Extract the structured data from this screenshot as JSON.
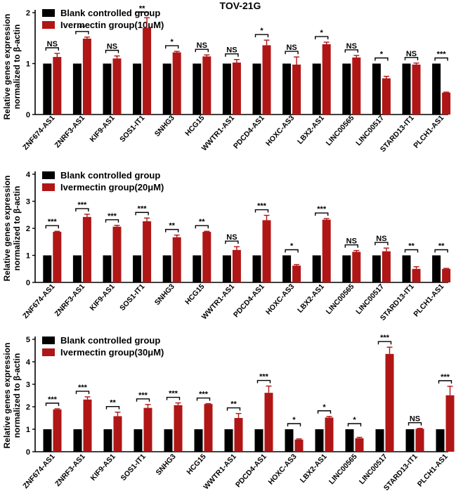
{
  "figure_title": "TOV-21G",
  "colors": {
    "control": "#000000",
    "treated": "#b01616"
  },
  "chart_data": [
    {
      "type": "bar",
      "ylabel_lines": [
        "Relative genes expression",
        "normalized to β-actin"
      ],
      "ylim": [
        0,
        2
      ],
      "yticks": [
        0,
        1,
        2
      ],
      "categories": [
        "ZNF674-AS1",
        "ZNRF3-AS1",
        "KIF9-AS1",
        "SOS1-IT1",
        "SNHG3",
        "HCG15",
        "WWTR1-AS1",
        "PDCD4-AS1",
        "HOXC-AS3",
        "LBX2-AS1",
        "LINC00565",
        "LINC00517",
        "STARD13-IT1",
        "PLCH1-AS1"
      ],
      "series": [
        {
          "name": "Blank controlled group",
          "values": [
            1,
            1,
            1,
            1,
            1,
            1,
            1,
            1,
            1,
            1,
            1,
            1,
            1,
            1
          ],
          "errors": [
            0,
            0,
            0,
            0,
            0,
            0,
            0,
            0,
            0,
            0,
            0,
            0,
            0,
            0
          ]
        },
        {
          "name": "Ivermectin group(10μM)",
          "values": [
            1.13,
            1.49,
            1.1,
            1.7,
            1.22,
            1.14,
            1.02,
            1.36,
            0.98,
            1.38,
            1.12,
            0.71,
            0.98,
            0.43
          ],
          "errors": [
            0.07,
            0.03,
            0.05,
            0.2,
            0.02,
            0.03,
            0.06,
            0.1,
            0.15,
            0.04,
            0.04,
            0.04,
            0.03,
            0.01
          ]
        }
      ],
      "significance": [
        "NS",
        "**",
        "NS",
        "**",
        "*",
        "NS",
        "NS",
        "*",
        "NS",
        "*",
        "NS",
        "*",
        "NS",
        "***"
      ],
      "legend": "top-left"
    },
    {
      "type": "bar",
      "ylabel_lines": [
        "Relative genes expression",
        "normalized to β-actin"
      ],
      "ylim": [
        0,
        4
      ],
      "yticks": [
        0,
        1,
        2,
        3,
        4
      ],
      "categories": [
        "ZNF674-AS1",
        "ZNRF3-AS1",
        "KIF9-AS1",
        "SOS1-IT1",
        "SNHG3",
        "HCG15",
        "WWTR1-AS1",
        "PDCD4-AS1",
        "HOXC-AS3",
        "LBX2-AS1",
        "LINC00565",
        "LINC00517",
        "STARD13-IT1",
        "PLCH1-AS1"
      ],
      "series": [
        {
          "name": "Blank controlled group",
          "values": [
            1,
            1,
            1,
            1,
            1,
            1,
            1,
            1,
            1,
            1,
            1,
            1,
            1,
            1
          ],
          "errors": [
            0,
            0,
            0,
            0,
            0,
            0,
            0,
            0,
            0,
            0,
            0,
            0,
            0,
            0
          ]
        },
        {
          "name": "Ivermectin group(20μM)",
          "values": [
            1.87,
            2.42,
            2.06,
            2.26,
            1.67,
            1.87,
            1.2,
            2.3,
            0.62,
            2.32,
            1.13,
            1.15,
            0.5,
            0.5
          ],
          "errors": [
            0.02,
            0.1,
            0.05,
            0.12,
            0.08,
            0.02,
            0.12,
            0.18,
            0.04,
            0.04,
            0.05,
            0.12,
            0.08,
            0.02
          ]
        }
      ],
      "significance": [
        "***",
        "***",
        "***",
        "***",
        "**",
        "**",
        "NS",
        "***",
        "*",
        "***",
        "NS",
        "NS",
        "**",
        "**"
      ],
      "legend": "top-left"
    },
    {
      "type": "bar",
      "ylabel_lines": [
        "Relative genes expression",
        "normalized to β-actin"
      ],
      "ylim": [
        0,
        5
      ],
      "yticks": [
        0,
        1,
        2,
        3,
        4,
        5
      ],
      "categories": [
        "ZNF674-AS1",
        "ZNRF3-AS1",
        "KIF9-AS1",
        "SOS1-IT1",
        "SNHG3",
        "HCG15",
        "WWTR1-AS1",
        "PDCD4-AS1",
        "HOXC-AS3",
        "LBX2-AS1",
        "LINC00565",
        "LINC00517",
        "STARD13-IT1",
        "PLCH1-AS1"
      ],
      "series": [
        {
          "name": "Blank controlled group",
          "values": [
            1,
            1,
            1,
            1,
            1,
            1,
            1,
            1,
            1,
            1,
            1,
            1,
            1,
            1
          ],
          "errors": [
            0,
            0,
            0,
            0,
            0,
            0,
            0,
            0,
            0,
            0,
            0,
            0,
            0,
            0
          ]
        },
        {
          "name": "Ivermectin group(30μM)",
          "values": [
            1.88,
            2.32,
            1.58,
            1.95,
            2.07,
            2.12,
            1.5,
            2.62,
            0.54,
            1.52,
            0.6,
            4.35,
            1.02,
            2.51
          ],
          "errors": [
            0.03,
            0.12,
            0.18,
            0.15,
            0.1,
            0.02,
            0.2,
            0.3,
            0.03,
            0.05,
            0.04,
            0.3,
            0.02,
            0.4
          ]
        }
      ],
      "significance": [
        "***",
        "***",
        "**",
        "***",
        "***",
        "***",
        "**",
        "***",
        "*",
        "*",
        "*",
        "***",
        "NS",
        "***"
      ],
      "legend": "top-left"
    }
  ]
}
